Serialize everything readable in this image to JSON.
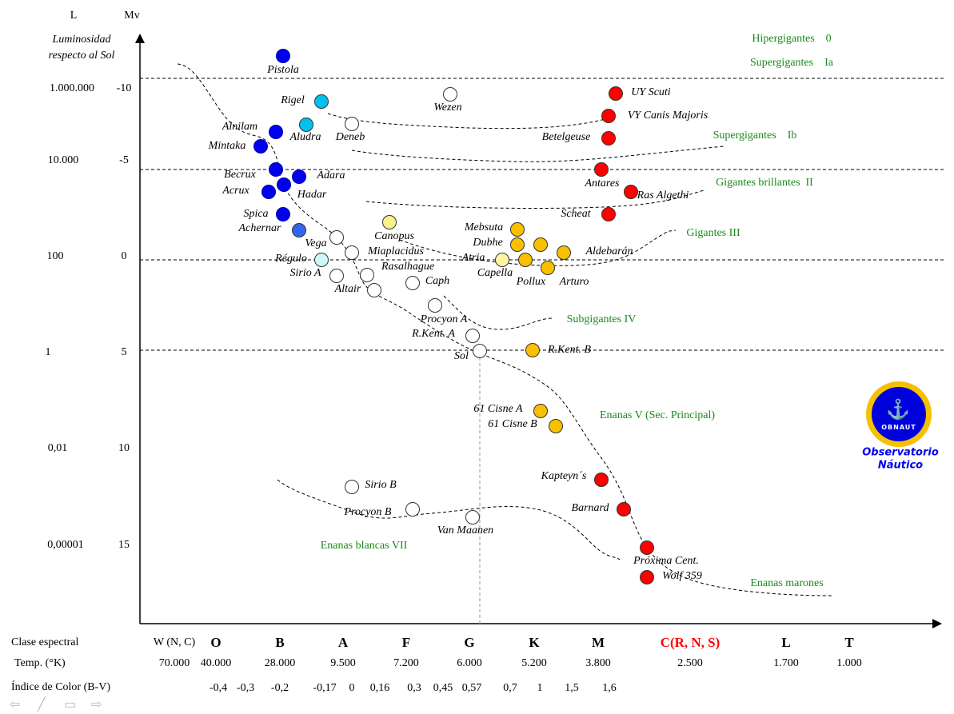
{
  "axes": {
    "l_header": "L",
    "mv_header": "Mv",
    "y_title_line1": "Luminosidad",
    "y_title_line2": "respecto al Sol",
    "rows": [
      {
        "l": "1.000.000",
        "mv": "-10"
      },
      {
        "l": "10.000",
        "mv": "-5"
      },
      {
        "l": "100",
        "mv": "0"
      },
      {
        "l": "1",
        "mv": "5"
      },
      {
        "l": "0,01",
        "mv": "10"
      },
      {
        "l": "0,00001",
        "mv": "15"
      }
    ]
  },
  "bottom": {
    "spectral_label": "Clase espectral",
    "temp_label": "Temp. (°K)",
    "color_index_label": "Índice de Color (B-V)",
    "classes": [
      {
        "cls": "W (N, C)",
        "temp": "70.000"
      },
      {
        "cls": "O",
        "temp": "40.000"
      },
      {
        "cls": "B",
        "temp": "28.000"
      },
      {
        "cls": "A",
        "temp": "9.500"
      },
      {
        "cls": "F",
        "temp": "7.200"
      },
      {
        "cls": "G",
        "temp": "6.000"
      },
      {
        "cls": "K",
        "temp": "5.200"
      },
      {
        "cls": "M",
        "temp": "3.800"
      },
      {
        "cls": "C(R, N, S)",
        "temp": "2.500",
        "color": "#ff0000"
      },
      {
        "cls": "L",
        "temp": "1.700"
      },
      {
        "cls": "T",
        "temp": "1.000"
      }
    ],
    "color_index": [
      "-0,4",
      "-0,3",
      "-0,2",
      "-0,17",
      "0",
      "0,16",
      "0,3",
      "0,45",
      "0,57",
      "0,7",
      "1",
      "1,5",
      "1,6"
    ]
  },
  "luminosity_classes": [
    "Hipergigantes    0",
    "Supergigantes    Ia",
    "Supergigantes    Ib",
    "Gigantes brillantes  II",
    "Gigantes III",
    "Subgigantes IV",
    "Enanas V (Sec. Principal)",
    "Enanas blancas VII",
    "Enanas marones"
  ],
  "stars": [
    {
      "name": "Pistola",
      "color": "#0000ee"
    },
    {
      "name": "Rigel",
      "color": "#00c0ee"
    },
    {
      "name": "Wezen",
      "color": "#ffffff"
    },
    {
      "name": "UY Scuti",
      "color": "#ff0000"
    },
    {
      "name": "VY Canis Majoris",
      "color": "#ff0000"
    },
    {
      "name": "Betelgeuse",
      "color": "#ff0000"
    },
    {
      "name": "Alnilam",
      "color": "#0000ee"
    },
    {
      "name": "Aludra",
      "color": "#00c0ee"
    },
    {
      "name": "Deneb",
      "color": "#ffffff"
    },
    {
      "name": "Mintaka",
      "color": "#0000ee"
    },
    {
      "name": "Becrux",
      "color": "#0000ee"
    },
    {
      "name": "Adara",
      "color": "#0000ee"
    },
    {
      "name": "Acrux",
      "color": "#0000ee"
    },
    {
      "name": "Hadar",
      "color": "#0000ee"
    },
    {
      "name": "Antares",
      "color": "#ff0000"
    },
    {
      "name": "Ras Algethi",
      "color": "#ff0000"
    },
    {
      "name": "Scheat",
      "color": "#ff0000"
    },
    {
      "name": "Spica",
      "color": "#0000ee"
    },
    {
      "name": "Achernar",
      "color": "#3366ee"
    },
    {
      "name": "Canopus",
      "color": "#f7f28c"
    },
    {
      "name": "Vega",
      "color": "#ffffff"
    },
    {
      "name": "Miaplacidus",
      "color": "#ffffff"
    },
    {
      "name": "Régulo",
      "color": "#cef7f7"
    },
    {
      "name": "Sirio A",
      "color": "#ffffff"
    },
    {
      "name": "Rasalhague",
      "color": "#ffffff"
    },
    {
      "name": "Altair",
      "color": "#ffffff"
    },
    {
      "name": "Caph",
      "color": "#ffffff"
    },
    {
      "name": "Procyon A",
      "color": "#ffffff"
    },
    {
      "name": "R.Kent. A",
      "color": "#ffffff"
    },
    {
      "name": "Sol",
      "color": "#ffffff"
    },
    {
      "name": "R.Kent. B",
      "color": "#f9c000"
    },
    {
      "name": "Mebsuta",
      "color": "#f9c000"
    },
    {
      "name": "Dubhe",
      "color": "#f9c000"
    },
    {
      "name": "Arturo",
      "color": "#f9c000"
    },
    {
      "name": "Aldebarán",
      "color": "#f9c000"
    },
    {
      "name": "Atria",
      "color": "#fff5a0"
    },
    {
      "name": "Capella",
      "color": "#f9c000"
    },
    {
      "name": "Pollux",
      "color": "#f9c000"
    },
    {
      "name": "61 Cisne A",
      "color": "#f9c000"
    },
    {
      "name": "61 Cisne B",
      "color": "#f9c000"
    },
    {
      "name": "Kapteyn´s",
      "color": "#ff0000"
    },
    {
      "name": "Barnard",
      "color": "#ff0000"
    },
    {
      "name": "Próxima Cent.",
      "color": "#ff0000"
    },
    {
      "name": "Wolf 359",
      "color": "#ff0000"
    },
    {
      "name": "Sirio B",
      "color": "#ffffff"
    },
    {
      "name": "Procyon B",
      "color": "#ffffff"
    },
    {
      "name": "Van Maanen",
      "color": "#ffffff"
    }
  ],
  "logo": {
    "badge_text": "OBNAUT",
    "line1": "Observatorio",
    "line2": "Náutico",
    "ring_color": "#f5c000",
    "fill_color": "#0000dd"
  },
  "nav_icons": [
    "back-arrow-icon",
    "pen-icon",
    "menu-icon",
    "forward-arrow-icon"
  ]
}
